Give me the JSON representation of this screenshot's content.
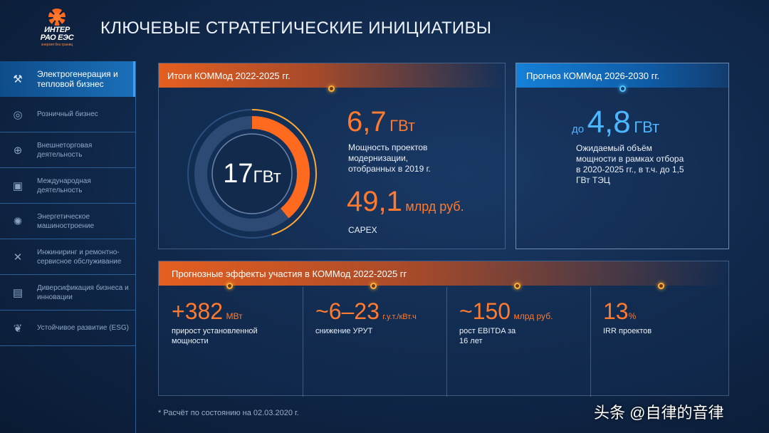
{
  "logo": {
    "line1": "ИНТЕР",
    "line2": "РАО ЕЭС",
    "tagline": "энергия без границ"
  },
  "page_title": "КЛЮЧЕВЫЕ СТРАТЕГИЧЕСКИЕ ИНИЦИАТИВЫ",
  "sidebar": {
    "items": [
      {
        "label": "Электрогенерация и тепловой бизнес",
        "icon": "power-plant-icon",
        "glyph": "⚒",
        "active": true
      },
      {
        "label": "Розничный бизнес",
        "icon": "retail-icon",
        "glyph": "◎",
        "active": false
      },
      {
        "label": "Внешнеторговая деятельность",
        "icon": "globe-icon",
        "glyph": "⊕",
        "active": false
      },
      {
        "label": "Международная деятельность",
        "icon": "chat-icon",
        "glyph": "▣",
        "active": false
      },
      {
        "label": "Энергетическое машиностроение",
        "icon": "gear-icon",
        "glyph": "✺",
        "active": false
      },
      {
        "label": "Инжиниринг и ремонтно-сервисное обслуживание",
        "icon": "tools-icon",
        "glyph": "✕",
        "active": false
      },
      {
        "label": "Диверсификация бизнеса и инновации",
        "icon": "chart-icon",
        "glyph": "▤",
        "active": false
      },
      {
        "label": "Устойчивое развитие (ESG)",
        "icon": "sprout-icon",
        "glyph": "❦",
        "active": false
      }
    ]
  },
  "results": {
    "header": "Итоги КОММод 2022-2025 гг.",
    "ring_value": "17",
    "ring_unit": "ГВт",
    "ring_fraction": 0.39,
    "stat1_value": "6,7",
    "stat1_unit": "ГВт",
    "stat1_desc": "Мощность проектов модернизации, отобранных в 2019 г.",
    "stat2_value": "49,1",
    "stat2_unit": "млрд руб.",
    "stat2_desc": "CAPEX"
  },
  "forecast": {
    "header": "Прогноз КОММод 2026-2030 гг.",
    "prefix": "до",
    "value": "4,8",
    "unit": "ГВт",
    "desc": "Ожидаемый объём мощности в рамках отбора в 2020-2025 гг., в т.ч. до 1,5 ГВт ТЭЦ"
  },
  "effects": {
    "header": "Прогнозные эффекты участия в КОММод 2022-2025 гг",
    "items": [
      {
        "value": "+382",
        "unit": "МВт",
        "desc": "прирост установленной мощности"
      },
      {
        "value": "~6–23",
        "unit": "г.у.т./кВт.ч",
        "desc": "снижение УРУТ"
      },
      {
        "value": "~150",
        "unit": "млрд руб.",
        "desc": "рост EBITDA за 16 лет"
      },
      {
        "value": "13",
        "unit": "%",
        "desc": "IRR проектов"
      }
    ]
  },
  "footnote": "* Расчёт по состоянию на 02.03.2020 г.",
  "watermark": "头条 @自律的音律",
  "colors": {
    "accent_orange": "#ff7a2f",
    "accent_blue": "#1580d8",
    "background": "#112a4d"
  }
}
